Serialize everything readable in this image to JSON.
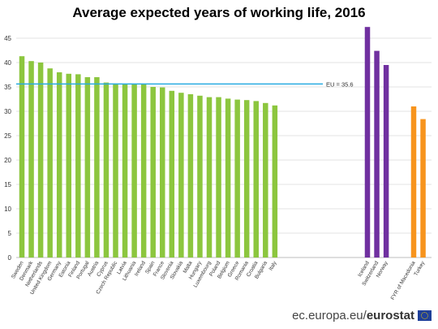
{
  "chart_data": {
    "type": "bar",
    "title": "Average expected years of working life, 2016",
    "xlabel": "",
    "ylabel": "",
    "ylim": [
      0,
      48
    ],
    "yticks": [
      0,
      5,
      10,
      15,
      20,
      25,
      30,
      35,
      40,
      45
    ],
    "grid": true,
    "groups": [
      {
        "color": "#8cc63e",
        "categories": [
          "Sweden",
          "Denmark",
          "Netherlands",
          "United Kingdom",
          "Germany",
          "Estonia",
          "Finland",
          "Portugal",
          "Austria",
          "Cyprus",
          "Czech Republic",
          "Latvia",
          "Lithuania",
          "Ireland",
          "Spain",
          "France",
          "Slovenia",
          "Slovakia",
          "Malta",
          "Hungary",
          "Luxembourg",
          "Poland",
          "Belgium",
          "Greece",
          "Romania",
          "Croatia",
          "Bulgaria",
          "Italy"
        ],
        "values": [
          41.3,
          40.3,
          40.0,
          38.8,
          38.0,
          37.7,
          37.6,
          37.0,
          37.0,
          35.9,
          35.7,
          35.6,
          35.6,
          35.5,
          35.0,
          34.9,
          34.2,
          33.8,
          33.5,
          33.2,
          32.9,
          32.9,
          32.6,
          32.4,
          32.3,
          32.1,
          31.7,
          31.2
        ]
      },
      {
        "color": "#7030a0",
        "categories": [
          "Iceland",
          "Switzerland",
          "Norway"
        ],
        "values": [
          47.3,
          42.4,
          39.5
        ]
      },
      {
        "color": "#f7941d",
        "categories": [
          "FYR of Macedonia",
          "Turkey"
        ],
        "values": [
          31.0,
          28.4
        ]
      }
    ],
    "reference_line": {
      "label": "EU = 35.6",
      "value": 35.6,
      "color": "#29abe2"
    }
  },
  "footer": {
    "prefix": "ec.europa.eu/",
    "brand": "eurostat"
  },
  "icons": {
    "flag": "eu-flag-icon"
  }
}
